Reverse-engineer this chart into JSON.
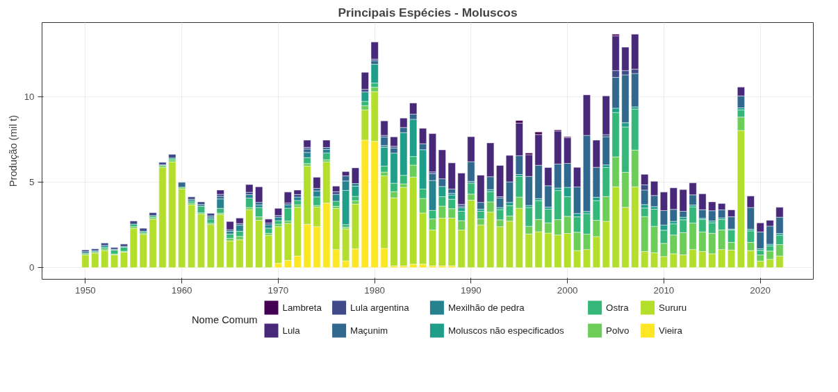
{
  "chart_data": {
    "type": "bar",
    "stacked": true,
    "title": "Principais Espécies - Moluscos",
    "ylabel": "Produção (mil t)",
    "legend_title": "Nome Comum",
    "legend": "bottom",
    "grid": true,
    "x": [
      1950,
      1951,
      1952,
      1953,
      1954,
      1955,
      1956,
      1957,
      1958,
      1959,
      1960,
      1961,
      1962,
      1963,
      1964,
      1965,
      1966,
      1967,
      1968,
      1969,
      1970,
      1971,
      1972,
      1973,
      1974,
      1975,
      1976,
      1977,
      1978,
      1979,
      1980,
      1981,
      1982,
      1983,
      1984,
      1985,
      1986,
      1987,
      1988,
      1989,
      1990,
      1991,
      1992,
      1993,
      1994,
      1995,
      1996,
      1997,
      1998,
      1999,
      2000,
      2001,
      2002,
      2003,
      2004,
      2005,
      2006,
      2007,
      2008,
      2009,
      2010,
      2011,
      2012,
      2013,
      2014,
      2015,
      2016,
      2017,
      2018,
      2019,
      2020,
      2021,
      2022
    ],
    "xlim": [
      1945.5,
      2025.5
    ],
    "xticks": [
      1950,
      1960,
      1970,
      1980,
      1990,
      2000,
      2010,
      2020
    ],
    "ylim": [
      -0.68,
      14.34
    ],
    "yticks": [
      0,
      5,
      10
    ],
    "series": [
      {
        "name": "Vieira",
        "color": "#fde725",
        "values": [
          0,
          0,
          0,
          0,
          0,
          0,
          0,
          0,
          0,
          0,
          0,
          0,
          0,
          0,
          0,
          0,
          0,
          0,
          0,
          0,
          0.25,
          0.43,
          0.68,
          2.54,
          2.4,
          3.78,
          1.06,
          0.4,
          1.1,
          7.46,
          7.39,
          1.13,
          0.1,
          0.1,
          0.2,
          0.2,
          0.1,
          0.1,
          0.1,
          0,
          0,
          0,
          0,
          0,
          0,
          0,
          0,
          0,
          0,
          0,
          0,
          0,
          0,
          0,
          0,
          0,
          0,
          0,
          0,
          0,
          0,
          0,
          0,
          0,
          0,
          0,
          0,
          0,
          0,
          0,
          0,
          0,
          0
        ]
      },
      {
        "name": "Sururu",
        "color": "#b4de2c",
        "values": [
          0.75,
          0.85,
          1.0,
          0.75,
          0.9,
          2.3,
          1.95,
          2.84,
          5.87,
          6.19,
          4.61,
          3.68,
          3.13,
          2.52,
          3.11,
          1.57,
          1.63,
          3.4,
          2.77,
          1.89,
          2.15,
          2.15,
          2.85,
          3.4,
          1.14,
          2.4,
          2.4,
          1.87,
          2.62,
          1.77,
          2.91,
          4.24,
          3.99,
          4.6,
          5.1,
          3.0,
          2.1,
          2.8,
          2.8,
          2.2,
          3.95,
          2.5,
          3.25,
          2.4,
          2.72,
          3.48,
          1.97,
          2.1,
          2.02,
          1.91,
          2.0,
          1.0,
          1.06,
          1.82,
          2.71,
          4.73,
          3.53,
          4.73,
          0.94,
          0.87,
          0.65,
          0.81,
          0.75,
          1.06,
          0.94,
          0.81,
          1.06,
          1.03,
          8.03,
          1.0,
          0.39,
          0.49,
          0.68
        ]
      },
      {
        "name": "Polvo",
        "color": "#6dcd59",
        "values": [
          0.08,
          0.08,
          0.1,
          0.05,
          0.06,
          0.1,
          0.08,
          0.1,
          0.1,
          0.12,
          0.1,
          0.1,
          0.08,
          0.08,
          0.08,
          0.15,
          0.2,
          0.12,
          0.2,
          0.12,
          0.15,
          0.15,
          0.15,
          0.15,
          0.1,
          0.13,
          0.13,
          0.1,
          0.2,
          0.25,
          0.25,
          0.22,
          0.35,
          0.2,
          0.7,
          0.85,
          0.65,
          0.7,
          0.55,
          0.55,
          0.35,
          0.35,
          0.6,
          0.4,
          0.3,
          0.65,
          0.45,
          0.72,
          0.6,
          0.9,
          1.0,
          1.07,
          0.9,
          0.95,
          1.45,
          1.75,
          2.05,
          2.15,
          2.05,
          1.55,
          0.77,
          1.1,
          1.3,
          1.55,
          1.15,
          1.2,
          1.15,
          0.45,
          0.78,
          0.48,
          0.35,
          0.48,
          0.67
        ]
      },
      {
        "name": "Ostra",
        "color": "#35b779",
        "values": [
          0,
          0,
          0.1,
          0.22,
          0.23,
          0.15,
          0.1,
          0.1,
          0.05,
          0.1,
          0,
          0.12,
          0.38,
          0.25,
          0.28,
          0.25,
          0.3,
          0.55,
          0.55,
          0.3,
          0.2,
          0.75,
          0.25,
          0.35,
          0.5,
          0.4,
          0.3,
          0.15,
          0.25,
          0.25,
          0.25,
          0.35,
          0.5,
          0.5,
          0.5,
          0.55,
          0.5,
          0.55,
          0.55,
          0.55,
          0.65,
          0.45,
          0.6,
          0.6,
          0.6,
          1.2,
          1.1,
          1.1,
          0.8,
          1.7,
          1.15,
          0.9,
          1.2,
          1.15,
          1.7,
          2.6,
          2.65,
          2.4,
          0.5,
          1.0,
          0.77,
          0.65,
          0.75,
          0.95,
          0.72,
          0.62,
          0.6,
          0.72,
          0.42,
          0.67,
          0.27,
          0.3,
          0.55
        ]
      },
      {
        "name": "Moluscos não especificados",
        "color": "#1f9e89",
        "values": [
          0,
          0,
          0,
          0,
          0,
          0,
          0,
          0,
          0,
          0,
          0,
          0,
          0,
          0,
          0,
          0,
          0,
          0,
          0,
          0,
          0,
          0,
          0,
          0,
          0,
          0,
          0,
          2.0,
          0.6,
          0.55,
          1.1,
          1.1,
          1.76,
          2.5,
          2.18,
          2.3,
          0,
          0.6,
          0.25,
          0.2,
          0,
          0.12,
          0.12,
          0.12,
          0.2,
          0.12,
          0.12,
          0.12,
          0.12,
          0.15,
          0.55,
          0.2,
          0.13,
          0.2,
          0.15,
          0.25,
          0.25,
          0.13,
          0.2,
          0.15,
          0.3,
          0.15,
          0.15,
          0.1,
          0.08,
          0.1,
          0.1,
          0.06,
          0.12,
          0.1,
          0.1,
          0.1,
          0.1
        ]
      },
      {
        "name": "Mexilhão de pedra",
        "color": "#26828e",
        "values": [
          0.1,
          0.07,
          0.1,
          0.06,
          0.05,
          0,
          0,
          0,
          0,
          0,
          0,
          0.1,
          0.1,
          0.1,
          0.55,
          0.15,
          0.35,
          0.2,
          0.15,
          0.2,
          0.2,
          0.2,
          0.2,
          0.3,
          0.35,
          0.2,
          0.4,
          0.55,
          0.15,
          0,
          0,
          0.1,
          0,
          0,
          0,
          0,
          1.75,
          0,
          0.1,
          0,
          0.1,
          0,
          0,
          0,
          0,
          0,
          0,
          0,
          0,
          0,
          0,
          0,
          0,
          0,
          0,
          0,
          0,
          0,
          0,
          0,
          0,
          0,
          0,
          0,
          0,
          0,
          0,
          0,
          0,
          0,
          0,
          0,
          0
        ]
      },
      {
        "name": "Maçunim",
        "color": "#31688e",
        "values": [
          0,
          0,
          0,
          0,
          0,
          0,
          0,
          0,
          0,
          0,
          0.28,
          0,
          0,
          0.08,
          0.15,
          0.1,
          0.1,
          0,
          0.15,
          0,
          0,
          0,
          0,
          0.2,
          0.15,
          0.12,
          0,
          0.3,
          0,
          0,
          0.2,
          0.5,
          0.3,
          0.3,
          0.3,
          0.35,
          0.4,
          0.45,
          0.25,
          0.1,
          1.15,
          0.4,
          0.75,
          0.55,
          1.2,
          1.1,
          1.7,
          1.95,
          1.25,
          1.4,
          1.4,
          1.55,
          4.45,
          1.75,
          1.65,
          1.8,
          2.8,
          1.95,
          0.85,
          0.65,
          0.85,
          0.7,
          0.35,
          0.6,
          0.5,
          0.6,
          0.47,
          0.72,
          0.7,
          1.27,
          0.98,
          1.06,
          0.95
        ]
      },
      {
        "name": "Lula argentina",
        "color": "#3e4a89",
        "values": [
          0.11,
          0.1,
          0.14,
          0.1,
          0.14,
          0.18,
          0.17,
          0.18,
          0.14,
          0.22,
          0,
          0.14,
          0.16,
          0.15,
          0.12,
          0,
          0,
          0.14,
          0,
          0.1,
          0.1,
          0.1,
          0.15,
          0.1,
          0,
          0,
          0.15,
          0,
          0,
          0.15,
          0.1,
          0.1,
          0.1,
          0,
          0,
          0,
          0.1,
          0,
          0,
          0.1,
          0,
          0,
          0,
          0.08,
          0,
          0,
          0,
          0,
          0,
          0,
          0,
          0,
          0,
          0,
          0.12,
          0.4,
          0.25,
          0.25,
          0.3,
          0,
          0,
          0,
          0,
          0,
          0,
          0,
          0,
          0,
          0,
          0,
          0,
          0,
          0
        ]
      },
      {
        "name": "Lula",
        "color": "#482878",
        "values": [
          0,
          0,
          0,
          0,
          0,
          0,
          0,
          0,
          0,
          0,
          0,
          0,
          0,
          0,
          0.25,
          0.48,
          0.32,
          0.45,
          0.91,
          0.23,
          0.42,
          0.64,
          0.26,
          0.42,
          0.65,
          0.43,
          0.33,
          0.25,
          0.92,
          1.0,
          1.0,
          0.85,
          0.55,
          0.55,
          0.65,
          0.9,
          2.24,
          1.69,
          1.53,
          1.83,
          1.46,
          1.59,
          1.98,
          1.83,
          1.55,
          1.91,
          1.27,
          1.8,
          1.07,
          1.93,
          1.5,
          1.15,
          2.37,
          1.59,
          2.27,
          2.03,
          1.37,
          2.05,
          0.62,
          0.83,
          1.08,
          1.26,
          1.27,
          0.7,
          0.93,
          0.52,
          0.37,
          0.4,
          0.51,
          0.67,
          0.53,
          0.34,
          0.58
        ]
      },
      {
        "name": "Lambreta",
        "color": "#440154",
        "values": [
          0,
          0,
          0,
          0,
          0,
          0,
          0,
          0,
          0,
          0,
          0,
          0,
          0,
          0,
          0,
          0,
          0,
          0,
          0,
          0,
          0,
          0,
          0,
          0,
          0,
          0,
          0,
          0,
          0,
          0,
          0,
          0,
          0,
          0,
          0,
          0,
          0,
          0,
          0,
          0,
          0,
          0,
          0,
          0,
          0,
          0.15,
          0.1,
          0.15,
          0,
          0.07,
          0.06,
          0,
          0,
          0,
          0,
          0.1,
          0,
          0,
          0,
          0,
          0,
          0,
          0,
          0,
          0,
          0,
          0,
          0,
          0,
          0,
          0,
          0,
          0
        ]
      }
    ]
  }
}
